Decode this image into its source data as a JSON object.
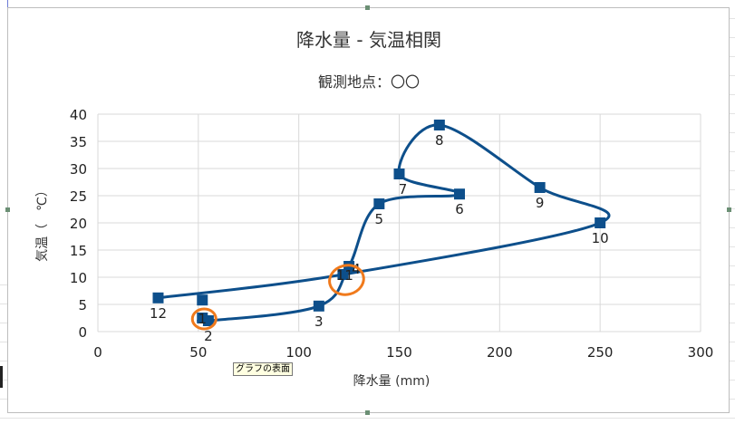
{
  "chart_data": {
    "type": "scatter",
    "title": "降水量 - 気温相関",
    "subtitle": "観測地点：〇〇",
    "xlabel": "降水量 (mm)",
    "ylabel": "気温（　℃）",
    "xlim": [
      0,
      300
    ],
    "ylim": [
      0,
      40
    ],
    "x_ticks": [
      0,
      50,
      100,
      150,
      200,
      250,
      300
    ],
    "y_ticks": [
      0,
      5,
      10,
      15,
      20,
      25,
      30,
      35,
      40
    ],
    "grid": true,
    "smoothed_line": true,
    "series_color": "#0d4f8b",
    "annotation_color": "#f07a1c",
    "points": [
      {
        "label": "1",
        "x": 52,
        "y": 2.5
      },
      {
        "label": "2",
        "x": 55,
        "y": 2
      },
      {
        "label": "3",
        "x": 110,
        "y": 4.7
      },
      {
        "label": "4",
        "x": 125,
        "y": 12
      },
      {
        "label": "5",
        "x": 140,
        "y": 23.5
      },
      {
        "label": "6",
        "x": 180,
        "y": 25.3
      },
      {
        "label": "7",
        "x": 150,
        "y": 29
      },
      {
        "label": "8",
        "x": 170,
        "y": 38
      },
      {
        "label": "9",
        "x": 220,
        "y": 26.5
      },
      {
        "label": "10",
        "x": 250,
        "y": 20
      },
      {
        "label": "11",
        "x": 122,
        "y": 10.5
      },
      {
        "label": "12",
        "x": 30,
        "y": 6.2
      }
    ],
    "extra_marker": {
      "x": 52,
      "y": 5.8
    }
  },
  "tooltip": "グラフの表面"
}
